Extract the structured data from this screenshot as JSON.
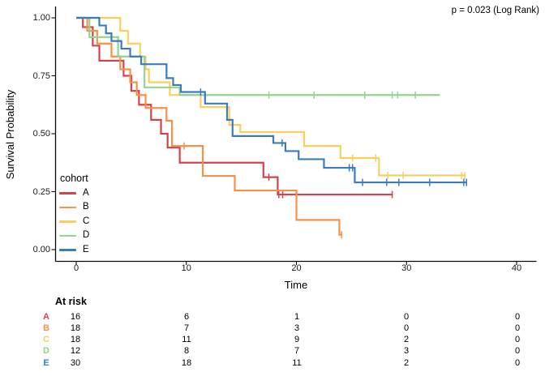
{
  "figure": {
    "p_value_annotation": "p = 0.023 (Log Rank)",
    "x_axis": {
      "label": "Time",
      "tick_labels": [
        "0",
        "10",
        "20",
        "30",
        "40"
      ]
    },
    "y_axis": {
      "label": "Survival Probability",
      "tick_labels": [
        "0.00",
        "0.25",
        "0.50",
        "0.75",
        "1.00"
      ]
    },
    "legend": {
      "title": "cohort",
      "items": [
        {
          "label": "A",
          "color": "#d6424b"
        },
        {
          "label": "B",
          "color": "#f59149"
        },
        {
          "label": "C",
          "color": "#f7d060"
        },
        {
          "label": "D",
          "color": "#94d390"
        },
        {
          "label": "E",
          "color": "#3c7cbc"
        }
      ]
    },
    "at_risk": {
      "header": "At risk",
      "rows": [
        {
          "label": "A",
          "color": "#d6424b",
          "counts": [
            "16",
            "6",
            "1",
            "0",
            "0"
          ]
        },
        {
          "label": "B",
          "color": "#f59149",
          "counts": [
            "18",
            "7",
            "3",
            "0",
            "0"
          ]
        },
        {
          "label": "C",
          "color": "#f7d060",
          "counts": [
            "18",
            "11",
            "9",
            "2",
            "0"
          ]
        },
        {
          "label": "D",
          "color": "#94d390",
          "counts": [
            "12",
            "8",
            "7",
            "3",
            "0"
          ]
        },
        {
          "label": "E",
          "color": "#3c7cbc",
          "counts": [
            "30",
            "18",
            "11",
            "2",
            "0"
          ]
        }
      ]
    }
  },
  "chart_data": {
    "type": "line",
    "subtype": "kaplan_meier_step",
    "title": "",
    "annotation": "p = 0.023 (Log Rank)",
    "xlabel": "Time",
    "ylabel": "Survival Probability",
    "xlim": [
      0,
      41.8
    ],
    "ylim": [
      -0.05,
      1.05
    ],
    "grid": false,
    "legend_position": "inside-left",
    "x_tick_values": [
      0,
      10,
      20,
      30,
      40
    ],
    "y_tick_values": [
      0,
      0.25,
      0.5,
      0.75,
      1.0
    ],
    "series": [
      {
        "name": "A",
        "color": "#d6424b",
        "start": [
          0,
          1.0
        ],
        "steps": [
          [
            0.6,
            0.96
          ],
          [
            1.5,
            0.88
          ],
          [
            2.1,
            0.815
          ],
          [
            4.3,
            0.75
          ],
          [
            5.0,
            0.685
          ],
          [
            5.7,
            0.625
          ],
          [
            6.8,
            0.56
          ],
          [
            7.7,
            0.5
          ],
          [
            8.3,
            0.44
          ],
          [
            9.4,
            0.375
          ],
          [
            17.0,
            0.3125
          ],
          [
            18.3,
            0.2375
          ]
        ],
        "end_time": 28.7,
        "censors": [
          [
            17.5,
            0.3125
          ],
          [
            18.4,
            0.2375
          ],
          [
            18.75,
            0.2375
          ],
          [
            28.7,
            0.2375
          ]
        ]
      },
      {
        "name": "B",
        "color": "#f59149",
        "start": [
          0,
          1.0
        ],
        "steps": [
          [
            1.0,
            0.944
          ],
          [
            1.9,
            0.889
          ],
          [
            3.2,
            0.833
          ],
          [
            4.0,
            0.778
          ],
          [
            4.9,
            0.722
          ],
          [
            5.5,
            0.667
          ],
          [
            6.3,
            0.611
          ],
          [
            8.2,
            0.556
          ],
          [
            8.7,
            0.447
          ],
          [
            11.5,
            0.318
          ],
          [
            14.4,
            0.255
          ],
          [
            20.0,
            0.128
          ],
          [
            23.9,
            0.064
          ]
        ],
        "end_time": 24.1,
        "censors": [
          [
            9.8,
            0.447
          ],
          [
            24.1,
            0.064
          ]
        ]
      },
      {
        "name": "C",
        "color": "#f7d060",
        "start": [
          0,
          1.0
        ],
        "steps": [
          [
            4.0,
            0.944
          ],
          [
            4.7,
            0.889
          ],
          [
            5.8,
            0.833
          ],
          [
            6.3,
            0.778
          ],
          [
            6.6,
            0.722
          ],
          [
            8.5,
            0.667
          ],
          [
            11.3,
            0.615
          ],
          [
            13.9,
            0.538
          ],
          [
            14.9,
            0.507
          ],
          [
            20.7,
            0.447
          ],
          [
            24.0,
            0.395
          ],
          [
            27.5,
            0.32
          ]
        ],
        "end_time": 35.3,
        "censors": [
          [
            25.1,
            0.395
          ],
          [
            27.2,
            0.395
          ],
          [
            28.3,
            0.32
          ],
          [
            29.7,
            0.32
          ],
          [
            35.0,
            0.32
          ],
          [
            35.3,
            0.32
          ]
        ]
      },
      {
        "name": "D",
        "color": "#94d390",
        "start": [
          0,
          1.0
        ],
        "steps": [
          [
            1.2,
            0.917
          ],
          [
            3.8,
            0.833
          ],
          [
            6.2,
            0.7
          ],
          [
            9.4,
            0.667
          ]
        ],
        "end_time": 33.0,
        "censors": [
          [
            17.5,
            0.667
          ],
          [
            21.6,
            0.667
          ],
          [
            26.2,
            0.667
          ],
          [
            28.7,
            0.667
          ],
          [
            29.2,
            0.667
          ],
          [
            30.8,
            0.667
          ]
        ]
      },
      {
        "name": "E",
        "color": "#3c7cbc",
        "start": [
          0,
          1.0
        ],
        "steps": [
          [
            2.1,
            0.967
          ],
          [
            2.7,
            0.933
          ],
          [
            3.2,
            0.9
          ],
          [
            4.1,
            0.867
          ],
          [
            4.9,
            0.833
          ],
          [
            5.9,
            0.8
          ],
          [
            8.2,
            0.74
          ],
          [
            8.8,
            0.71
          ],
          [
            9.5,
            0.68
          ],
          [
            11.7,
            0.63
          ],
          [
            13.7,
            0.56
          ],
          [
            14.2,
            0.49
          ],
          [
            17.9,
            0.46
          ],
          [
            19.0,
            0.425
          ],
          [
            20.2,
            0.39
          ],
          [
            22.5,
            0.353
          ],
          [
            25.3,
            0.29
          ]
        ],
        "end_time": 35.5,
        "censors": [
          [
            11.3,
            0.68
          ],
          [
            18.7,
            0.46
          ],
          [
            24.8,
            0.353
          ],
          [
            25.1,
            0.353
          ],
          [
            26.0,
            0.29
          ],
          [
            28.2,
            0.29
          ],
          [
            29.3,
            0.29
          ],
          [
            32.1,
            0.29
          ],
          [
            35.2,
            0.29
          ],
          [
            35.45,
            0.29
          ]
        ]
      }
    ],
    "at_risk_table": {
      "header": "At risk",
      "times": [
        0,
        10,
        20,
        30,
        40
      ],
      "rows": [
        {
          "name": "A",
          "counts": [
            16,
            6,
            1,
            0,
            0
          ]
        },
        {
          "name": "B",
          "counts": [
            18,
            7,
            3,
            0,
            0
          ]
        },
        {
          "name": "C",
          "counts": [
            18,
            11,
            9,
            2,
            0
          ]
        },
        {
          "name": "D",
          "counts": [
            12,
            8,
            7,
            3,
            0
          ]
        },
        {
          "name": "E",
          "counts": [
            30,
            18,
            11,
            2,
            0
          ]
        }
      ]
    }
  }
}
